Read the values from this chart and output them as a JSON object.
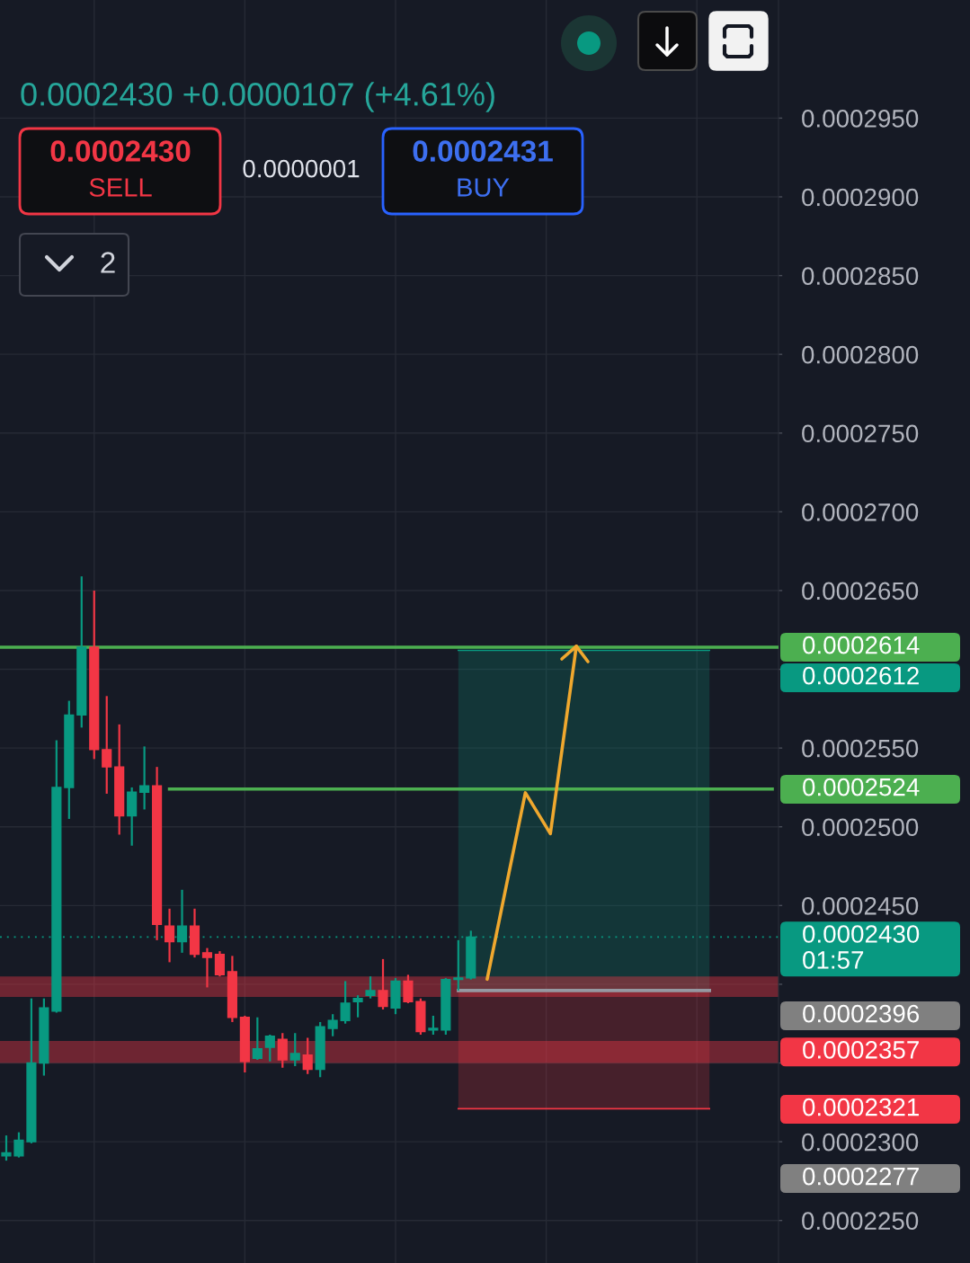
{
  "chart_data": {
    "type": "candlestick",
    "categories": [
      null,
      null,
      null,
      null,
      null,
      null,
      null,
      null,
      null,
      null,
      null,
      null,
      null,
      null,
      null,
      null,
      null,
      null,
      null,
      null,
      null,
      null,
      null,
      null,
      null,
      null,
      null,
      null,
      null,
      null,
      null,
      null,
      null,
      null,
      null,
      null,
      null,
      null,
      null,
      null,
      null,
      null,
      null,
      null,
      null,
      null,
      null,
      null,
      null,
      null,
      null,
      null,
      null,
      null,
      null,
      null,
      null,
      null,
      null,
      null,
      null,
      null
    ],
    "ohlc": [
      [
        0.0002291,
        0.0002304,
        0.0002288,
        0.0002293
      ],
      [
        0.0002291,
        0.0002306,
        0.000229,
        0.0002301
      ],
      [
        0.00023,
        0.0002391,
        0.0002299,
        0.000235
      ],
      [
        0.000235,
        0.0002391,
        0.0002342,
        0.0002385
      ],
      [
        0.0002383,
        0.0002555,
        0.0002382,
        0.0002525
      ],
      [
        0.0002525,
        0.000258,
        0.0002505,
        0.0002571
      ],
      [
        0.0002571,
        0.0002659,
        0.0002563,
        0.0002614
      ],
      [
        0.0002614,
        0.000265,
        0.0002543,
        0.0002549
      ],
      [
        0.0002549,
        0.0002583,
        0.0002521,
        0.0002538
      ],
      [
        0.0002538,
        0.0002565,
        0.0002495,
        0.0002507
      ],
      [
        0.0002507,
        0.0002525,
        0.0002488,
        0.0002522
      ],
      [
        0.0002522,
        0.0002551,
        0.0002511,
        0.0002526
      ],
      [
        0.0002526,
        0.0002538,
        0.0002428,
        0.0002438
      ],
      [
        0.0002437,
        0.0002448,
        0.0002414,
        0.0002427
      ],
      [
        0.0002427,
        0.000246,
        0.000242,
        0.0002437
      ],
      [
        0.0002437,
        0.0002448,
        0.0002417,
        0.0002419
      ],
      [
        0.000242,
        0.0002423,
        0.0002398,
        0.0002417
      ],
      [
        0.0002419,
        0.0002421,
        0.0002405,
        0.0002406
      ],
      [
        0.0002408,
        0.0002418,
        0.0002376,
        0.0002379
      ],
      [
        0.0002379,
        0.000238,
        0.0002344,
        0.0002351
      ],
      [
        0.0002353,
        0.0002379,
        0.0002352,
        0.0002359
      ],
      [
        0.000236,
        0.0002368,
        0.0002351,
        0.0002367
      ],
      [
        0.0002365,
        0.0002369,
        0.0002347,
        0.0002352
      ],
      [
        0.0002352,
        0.0002369,
        0.0002348,
        0.0002356
      ],
      [
        0.0002355,
        0.0002366,
        0.0002343,
        0.0002346
      ],
      [
        0.0002346,
        0.0002376,
        0.0002341,
        0.0002373
      ],
      [
        0.0002372,
        0.0002381,
        0.0002367,
        0.0002377
      ],
      [
        0.0002377,
        0.0002402,
        0.0002375,
        0.0002388
      ],
      [
        0.0002389,
        0.0002393,
        0.0002379,
        0.0002391
      ],
      [
        0.0002393,
        0.0002405,
        0.0002391,
        0.0002396
      ],
      [
        0.0002396,
        0.0002416,
        0.0002384,
        0.0002386
      ],
      [
        0.0002385,
        0.0002404,
        0.0002381,
        0.0002402
      ],
      [
        0.0002402,
        0.0002406,
        0.0002388,
        0.0002389
      ],
      [
        0.0002389,
        0.0002391,
        0.0002368,
        0.000237
      ],
      [
        0.0002371,
        0.000238,
        0.0002368,
        0.0002372
      ],
      [
        0.0002371,
        0.0002404,
        0.0002368,
        0.0002403
      ],
      [
        0.0002403,
        0.0002428,
        0.0002396,
        0.0002404
      ],
      [
        0.0002404,
        0.0002434,
        0.0002403,
        0.000243
      ],
      null,
      null,
      null,
      null,
      null,
      null,
      null,
      null,
      null,
      null,
      null,
      null,
      null,
      null,
      null,
      null,
      null,
      null,
      null,
      null,
      null,
      null,
      null,
      null
    ],
    "colors": [
      "#089981",
      "#089981",
      "#089981",
      "#089981",
      "#089981",
      "#089981",
      "#089981",
      "#f23645",
      "#f23645",
      "#f23645",
      "#089981",
      "#089981",
      "#f23645",
      "#f23645",
      "#089981",
      "#f23645",
      "#f23645",
      "#f23645",
      "#f23645",
      "#f23645",
      "#089981",
      "#089981",
      "#f23645",
      "#089981",
      "#f23645",
      "#089981",
      "#089981",
      "#089981",
      "#089981",
      "#089981",
      "#f23645",
      "#089981",
      "#f23645",
      "#f23645",
      "#089981",
      "#089981",
      "#089981",
      "#089981",
      null,
      null,
      null,
      null,
      null,
      null,
      null,
      null,
      null,
      null,
      null,
      null,
      null,
      null,
      null,
      null,
      null,
      null,
      null,
      null,
      null,
      null,
      null,
      null
    ],
    "series": [
      {
        "type": "line",
        "color": "#4caf50",
        "values": [
          null,
          null,
          null,
          null,
          null,
          null,
          null,
          null,
          null,
          null,
          null,
          null,
          null,
          0.0002524,
          0.0002524,
          0.0002524,
          0.0002524,
          0.0002524,
          0.0002524,
          0.0002524,
          0.0002524,
          0.0002524,
          0.0002524,
          0.0002524,
          0.0002524,
          0.0002524,
          0.0002524,
          0.0002524,
          0.0002524,
          0.0002524,
          0.0002524,
          0.0002524,
          0.0002524,
          0.0002524,
          0.0002524,
          0.0002524,
          0.0002524,
          0.0002524,
          0.0002524,
          0.0002524,
          0.0002524,
          0.0002524,
          0.0002524,
          0.0002524,
          0.0002524,
          0.0002524,
          0.0002524,
          0.0002524,
          0.0002524,
          0.0002524,
          0.0002524,
          0.0002524,
          0.0002524,
          0.0002524,
          0.0002524,
          0.0002524,
          0.0002524,
          0.0002524,
          0.0002524,
          0.0002524,
          0.0002524,
          0.0002524
        ]
      },
      {
        "type": "line",
        "color": "#089981",
        "values": [
          null,
          null,
          null,
          null,
          null,
          null,
          null,
          null,
          null,
          null,
          null,
          null,
          null,
          null,
          null,
          null,
          null,
          null,
          null,
          null,
          null,
          null,
          null,
          null,
          null,
          null,
          null,
          null,
          null,
          null,
          null,
          null,
          null,
          null,
          null,
          null,
          0.0002612,
          0.0002612,
          0.0002612,
          0.0002612,
          0.0002612,
          0.0002612,
          0.0002612,
          0.0002612,
          0.0002612,
          0.0002612,
          0.0002612,
          0.0002612,
          0.0002612,
          0.0002612,
          0.0002612,
          0.0002612,
          0.0002612,
          0.0002612,
          0.0002612,
          0.0002612,
          0.0002612,
          null,
          null,
          null,
          null,
          null
        ],
        "lower": [
          null,
          null,
          null,
          null,
          null,
          null,
          null,
          null,
          null,
          null,
          null,
          null,
          null,
          null,
          null,
          null,
          null,
          null,
          null,
          null,
          null,
          null,
          null,
          null,
          null,
          null,
          null,
          null,
          null,
          null,
          null,
          null,
          null,
          null,
          null,
          null,
          0.0002396,
          0.0002396,
          0.0002396,
          0.0002396,
          0.0002396,
          0.0002396,
          0.0002396,
          0.0002396,
          0.0002396,
          0.0002396,
          0.0002396,
          0.0002396,
          0.0002396,
          0.0002396,
          0.0002396,
          0.0002396,
          0.0002396,
          0.0002396,
          0.0002396,
          0.0002396,
          0.0002396,
          null,
          null,
          null,
          null,
          null
        ],
        "upper": [
          null,
          null,
          null,
          null,
          null,
          null,
          null,
          null,
          null,
          null,
          null,
          null,
          null,
          null,
          null,
          null,
          null,
          null,
          null,
          null,
          null,
          null,
          null,
          null,
          null,
          null,
          null,
          null,
          null,
          null,
          null,
          null,
          null,
          null,
          null,
          null,
          0.0002612,
          0.0002612,
          0.0002612,
          0.0002612,
          0.0002612,
          0.0002612,
          0.0002612,
          0.0002612,
          0.0002612,
          0.0002612,
          0.0002612,
          0.0002612,
          0.0002612,
          0.0002612,
          0.0002612,
          0.0002612,
          0.0002612,
          0.0002612,
          0.0002612,
          0.0002612,
          0.0002612,
          null,
          null,
          null,
          null,
          null
        ]
      },
      {
        "type": "line",
        "color": "#f23645",
        "values": [
          null,
          null,
          null,
          null,
          null,
          null,
          null,
          null,
          null,
          null,
          null,
          null,
          null,
          null,
          null,
          null,
          null,
          null,
          null,
          null,
          null,
          null,
          null,
          null,
          null,
          null,
          null,
          null,
          null,
          null,
          null,
          null,
          null,
          null,
          null,
          null,
          0.0002321,
          0.0002321,
          0.0002321,
          0.0002321,
          0.0002321,
          0.0002321,
          0.0002321,
          0.0002321,
          0.0002321,
          0.0002321,
          0.0002321,
          0.0002321,
          0.0002321,
          0.0002321,
          0.0002321,
          0.0002321,
          0.0002321,
          0.0002321,
          0.0002321,
          0.0002321,
          0.0002321,
          null,
          null,
          null,
          null,
          null
        ],
        "lower": [
          null,
          null,
          null,
          null,
          null,
          null,
          null,
          null,
          null,
          null,
          null,
          null,
          null,
          null,
          null,
          null,
          null,
          null,
          null,
          null,
          null,
          null,
          null,
          null,
          null,
          null,
          null,
          null,
          null,
          null,
          null,
          null,
          null,
          null,
          null,
          null,
          0.0002321,
          0.0002321,
          0.0002321,
          0.0002321,
          0.0002321,
          0.0002321,
          0.0002321,
          0.0002321,
          0.0002321,
          0.0002321,
          0.0002321,
          0.0002321,
          0.0002321,
          0.0002321,
          0.0002321,
          0.0002321,
          0.0002321,
          0.0002321,
          0.0002321,
          0.0002321,
          0.0002321,
          null,
          null,
          null,
          null,
          null
        ],
        "upper": [
          null,
          null,
          null,
          null,
          null,
          null,
          null,
          null,
          null,
          null,
          null,
          null,
          null,
          null,
          null,
          null,
          null,
          null,
          null,
          null,
          null,
          null,
          null,
          null,
          null,
          null,
          null,
          null,
          null,
          null,
          null,
          null,
          null,
          null,
          null,
          null,
          0.0002396,
          0.0002396,
          0.0002396,
          0.0002396,
          0.0002396,
          0.0002396,
          0.0002396,
          0.0002396,
          0.0002396,
          0.0002396,
          0.0002396,
          0.0002396,
          0.0002396,
          0.0002396,
          0.0002396,
          0.0002396,
          0.0002396,
          0.0002396,
          0.0002396,
          0.0002396,
          0.0002396,
          null,
          null,
          null,
          null,
          null
        ]
      },
      {
        "type": "line",
        "color": "#9598a1",
        "values": [
          null,
          null,
          null,
          null,
          null,
          null,
          null,
          null,
          null,
          null,
          null,
          null,
          null,
          null,
          null,
          null,
          null,
          null,
          null,
          null,
          null,
          null,
          null,
          null,
          null,
          null,
          null,
          null,
          null,
          null,
          null,
          null,
          null,
          null,
          null,
          null,
          0.0002396,
          0.0002396,
          0.0002396,
          0.0002396,
          0.0002396,
          0.0002396,
          0.0002396,
          0.0002396,
          0.0002396,
          0.0002396,
          0.0002396,
          0.0002396,
          0.0002396,
          0.0002396,
          0.0002396,
          0.0002396,
          0.0002396,
          0.0002396,
          0.0002396,
          0.0002396,
          0.0002396,
          null,
          null,
          null,
          null,
          null
        ]
      }
    ],
    "ylim": [
      0.0002223,
      0.0003025
    ],
    "yticks": [
      {
        "value": 0.000225,
        "label": "0.0002250"
      },
      {
        "value": 0.00023,
        "label": "0.0002300"
      },
      {
        "value": 0.000235,
        "label": null
      },
      {
        "value": 0.00024,
        "label": null
      },
      {
        "value": 0.000245,
        "label": "0.0002450"
      },
      {
        "value": 0.00025,
        "label": "0.0002500"
      },
      {
        "value": 0.000255,
        "label": "0.0002550"
      },
      {
        "value": 0.00026,
        "label": null
      },
      {
        "value": 0.000265,
        "label": "0.0002650"
      },
      {
        "value": 0.00027,
        "label": "0.0002700"
      },
      {
        "value": 0.000275,
        "label": "0.0002750"
      },
      {
        "value": 0.00028,
        "label": "0.0002800"
      },
      {
        "value": 0.000285,
        "label": "0.0002850"
      },
      {
        "value": 0.00029,
        "label": "0.0002900"
      },
      {
        "value": 0.000295,
        "label": "0.0002950"
      }
    ],
    "ref_lines": [
      {
        "axis": "y",
        "value": 0.0002614,
        "label": "0.0002614",
        "color": "#4caf50",
        "line_style": "solid"
      },
      {
        "axis": "y",
        "value": 0.000243,
        "label": "0.0002430\n01:57",
        "color": "#089981",
        "line_style": "dotted"
      }
    ],
    "bands": [
      {
        "axis": "y",
        "from": 0.0002392,
        "to": 0.0002405,
        "color": "#f23645"
      },
      {
        "axis": "y",
        "from": 0.000235,
        "to": 0.0002364,
        "label": "0.0002357",
        "color": "#f23645"
      }
    ],
    "annotations": [
      "0.0002430 +0.0000107 (+4.61%)",
      "0.0002430",
      "SELL",
      "0.0000001",
      "0.0002431",
      "BUY",
      "2",
      "0.0002612",
      "0.0002524",
      "0.0002396",
      "0.0002321",
      "0.0002277"
    ],
    "grid": true,
    "tick_labels": "y"
  }
}
